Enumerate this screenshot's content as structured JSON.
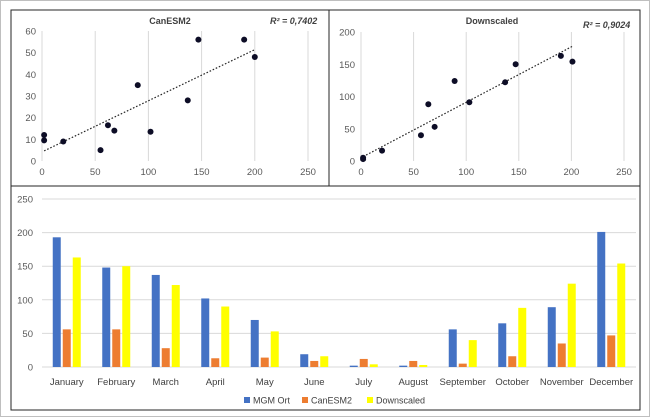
{
  "chart_data": [
    {
      "type": "scatter",
      "title": "CanESM2",
      "annotation": "R² = 0,7402",
      "xlim": [
        0,
        250
      ],
      "ylim": [
        0,
        60
      ],
      "x_ticks": [
        0,
        50,
        100,
        150,
        200,
        250
      ],
      "y_ticks": [
        0,
        10,
        20,
        30,
        40,
        50,
        60
      ],
      "grid": "vertical",
      "trendline": {
        "style": "dotted",
        "intercept": 4.2,
        "slope": 0.236
      },
      "points": [
        [
          2,
          12
        ],
        [
          2,
          9.5
        ],
        [
          20,
          9
        ],
        [
          55,
          5
        ],
        [
          62,
          16.5
        ],
        [
          68,
          14
        ],
        [
          90,
          35
        ],
        [
          102,
          13.5
        ],
        [
          137,
          28
        ],
        [
          147,
          56
        ],
        [
          190,
          56
        ],
        [
          200,
          48
        ]
      ]
    },
    {
      "type": "scatter",
      "title": "Downscaled",
      "annotation": "R² = 0,9024",
      "xlim": [
        0,
        250
      ],
      "ylim": [
        0,
        200
      ],
      "x_ticks": [
        0,
        50,
        100,
        150,
        200,
        250
      ],
      "y_ticks": [
        0,
        50,
        100,
        150,
        200
      ],
      "grid": "vertical",
      "trendline": {
        "style": "dotted",
        "intercept": 5,
        "slope": 0.86
      },
      "points": [
        [
          2,
          5
        ],
        [
          2,
          3
        ],
        [
          20,
          16
        ],
        [
          57,
          40
        ],
        [
          64,
          88
        ],
        [
          70,
          53
        ],
        [
          89,
          124
        ],
        [
          103,
          91
        ],
        [
          137,
          122
        ],
        [
          147,
          150
        ],
        [
          190,
          163
        ],
        [
          201,
          154
        ]
      ]
    },
    {
      "type": "bar",
      "categories": [
        "January",
        "February",
        "March",
        "April",
        "May",
        "June",
        "July",
        "August",
        "September",
        "October",
        "November",
        "December"
      ],
      "ylim": [
        0,
        250
      ],
      "y_ticks": [
        0,
        50,
        100,
        150,
        200,
        250
      ],
      "grid": "horizontal",
      "legend": "bottom",
      "series": [
        {
          "name": "MGM Ort",
          "color": "#4472c4",
          "values": [
            193,
            148,
            137,
            102,
            70,
            19,
            2,
            2,
            56,
            65,
            89,
            201
          ]
        },
        {
          "name": "CanESM2",
          "color": "#ed7d31",
          "values": [
            56,
            56,
            28,
            13,
            14,
            9,
            12,
            9,
            5,
            16,
            35,
            47
          ]
        },
        {
          "name": "Downscaled",
          "color": "#ffff00",
          "values": [
            163,
            150,
            122,
            90,
            53,
            16,
            4,
            3,
            40,
            88,
            124,
            154
          ]
        }
      ]
    }
  ]
}
